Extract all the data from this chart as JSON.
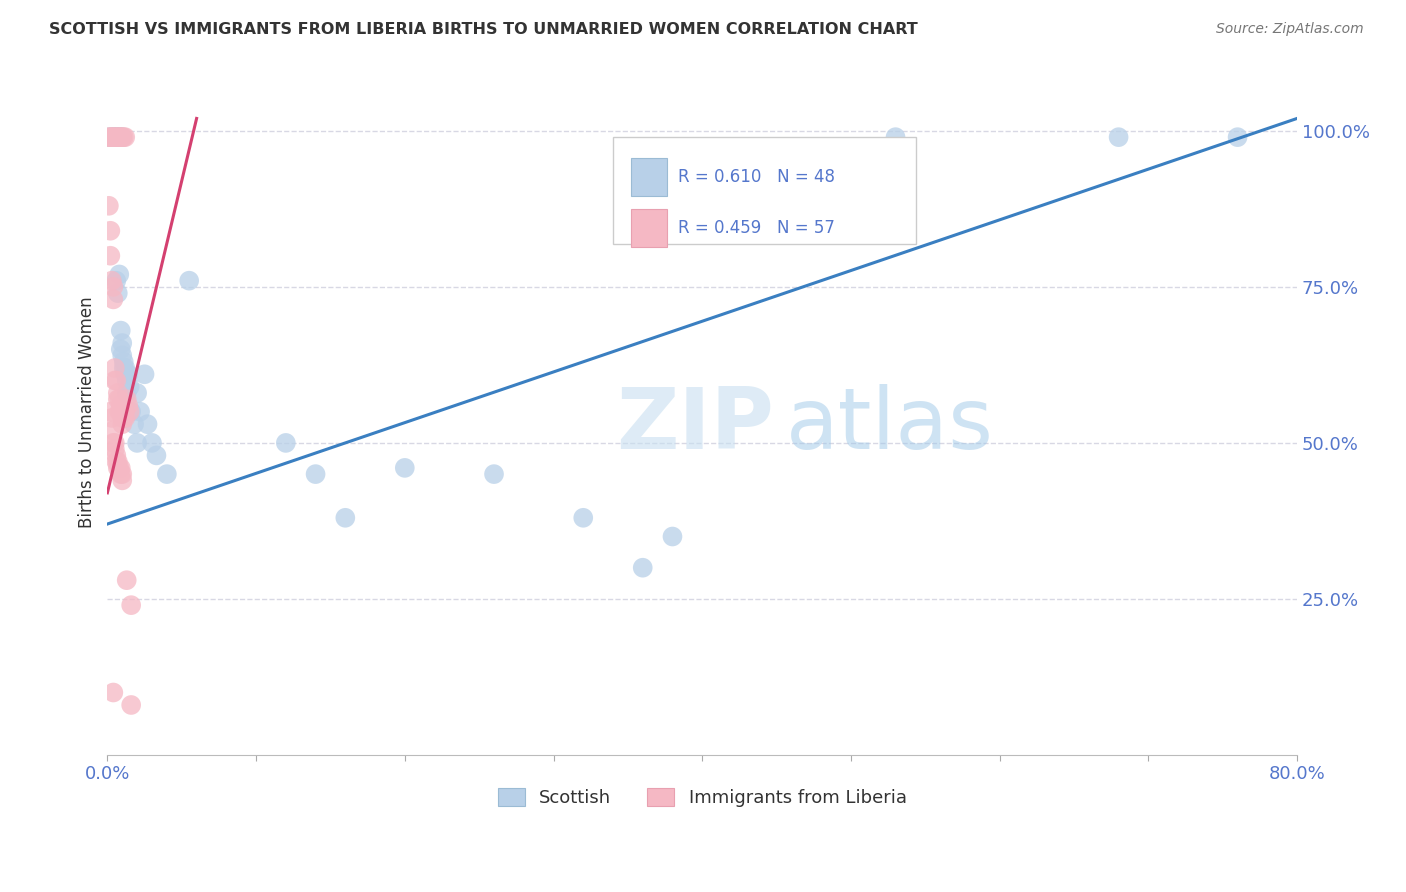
{
  "title": "SCOTTISH VS IMMIGRANTS FROM LIBERIA BIRTHS TO UNMARRIED WOMEN CORRELATION CHART",
  "source": "Source: ZipAtlas.com",
  "ylabel": "Births to Unmarried Women",
  "legend_label1": "Scottish",
  "legend_label2": "Immigrants from Liberia",
  "R_blue": 0.61,
  "N_blue": 48,
  "R_pink": 0.459,
  "N_pink": 57,
  "watermark_zip": "ZIP",
  "watermark_atlas": "atlas",
  "blue_color": "#b8d0e8",
  "pink_color": "#f5b8c4",
  "blue_line_color": "#3a7fc1",
  "pink_line_color": "#d44070",
  "blue_scatter": [
    [
      0.001,
      0.99
    ],
    [
      0.003,
      0.99
    ],
    [
      0.004,
      0.99
    ],
    [
      0.005,
      0.99
    ],
    [
      0.005,
      0.99
    ],
    [
      0.006,
      0.99
    ],
    [
      0.006,
      0.99
    ],
    [
      0.007,
      0.99
    ],
    [
      0.008,
      0.99
    ],
    [
      0.009,
      0.99
    ],
    [
      0.01,
      0.99
    ],
    [
      0.006,
      0.76
    ],
    [
      0.007,
      0.74
    ],
    [
      0.008,
      0.77
    ],
    [
      0.009,
      0.65
    ],
    [
      0.009,
      0.68
    ],
    [
      0.01,
      0.66
    ],
    [
      0.01,
      0.64
    ],
    [
      0.011,
      0.63
    ],
    [
      0.011,
      0.62
    ],
    [
      0.012,
      0.62
    ],
    [
      0.012,
      0.61
    ],
    [
      0.013,
      0.6
    ],
    [
      0.013,
      0.58
    ],
    [
      0.014,
      0.61
    ],
    [
      0.015,
      0.59
    ],
    [
      0.016,
      0.55
    ],
    [
      0.018,
      0.53
    ],
    [
      0.02,
      0.5
    ],
    [
      0.02,
      0.58
    ],
    [
      0.022,
      0.55
    ],
    [
      0.025,
      0.61
    ],
    [
      0.027,
      0.53
    ],
    [
      0.03,
      0.5
    ],
    [
      0.033,
      0.48
    ],
    [
      0.04,
      0.45
    ],
    [
      0.055,
      0.76
    ],
    [
      0.12,
      0.5
    ],
    [
      0.14,
      0.45
    ],
    [
      0.16,
      0.38
    ],
    [
      0.2,
      0.46
    ],
    [
      0.26,
      0.45
    ],
    [
      0.32,
      0.38
    ],
    [
      0.36,
      0.3
    ],
    [
      0.38,
      0.35
    ],
    [
      0.53,
      0.99
    ],
    [
      0.68,
      0.99
    ],
    [
      0.76,
      0.99
    ]
  ],
  "pink_scatter": [
    [
      0.001,
      0.99
    ],
    [
      0.002,
      0.99
    ],
    [
      0.003,
      0.99
    ],
    [
      0.004,
      0.99
    ],
    [
      0.005,
      0.99
    ],
    [
      0.006,
      0.99
    ],
    [
      0.007,
      0.99
    ],
    [
      0.008,
      0.99
    ],
    [
      0.009,
      0.99
    ],
    [
      0.01,
      0.99
    ],
    [
      0.011,
      0.99
    ],
    [
      0.012,
      0.99
    ],
    [
      0.001,
      0.88
    ],
    [
      0.002,
      0.84
    ],
    [
      0.002,
      0.8
    ],
    [
      0.003,
      0.76
    ],
    [
      0.004,
      0.75
    ],
    [
      0.004,
      0.73
    ],
    [
      0.005,
      0.62
    ],
    [
      0.005,
      0.6
    ],
    [
      0.006,
      0.6
    ],
    [
      0.007,
      0.58
    ],
    [
      0.007,
      0.57
    ],
    [
      0.008,
      0.57
    ],
    [
      0.008,
      0.55
    ],
    [
      0.009,
      0.56
    ],
    [
      0.009,
      0.55
    ],
    [
      0.01,
      0.55
    ],
    [
      0.01,
      0.54
    ],
    [
      0.01,
      0.53
    ],
    [
      0.011,
      0.55
    ],
    [
      0.011,
      0.54
    ],
    [
      0.012,
      0.54
    ],
    [
      0.012,
      0.55
    ],
    [
      0.013,
      0.57
    ],
    [
      0.014,
      0.56
    ],
    [
      0.015,
      0.55
    ],
    [
      0.002,
      0.55
    ],
    [
      0.003,
      0.54
    ],
    [
      0.004,
      0.52
    ],
    [
      0.004,
      0.5
    ],
    [
      0.005,
      0.5
    ],
    [
      0.005,
      0.49
    ],
    [
      0.006,
      0.48
    ],
    [
      0.006,
      0.47
    ],
    [
      0.007,
      0.47
    ],
    [
      0.007,
      0.46
    ],
    [
      0.008,
      0.46
    ],
    [
      0.009,
      0.46
    ],
    [
      0.009,
      0.45
    ],
    [
      0.01,
      0.45
    ],
    [
      0.01,
      0.44
    ],
    [
      0.013,
      0.28
    ],
    [
      0.016,
      0.24
    ],
    [
      0.016,
      0.08
    ],
    [
      0.004,
      0.1
    ]
  ],
  "xmin": 0.0,
  "xmax": 0.8,
  "ymin": 0.0,
  "ymax": 1.1,
  "xtick_count": 9,
  "ytick_vals": [
    1.0,
    0.75,
    0.5,
    0.25
  ],
  "ytick_labels": [
    "100.0%",
    "75.0%",
    "50.0%",
    "25.0%"
  ],
  "blue_line_x": [
    0.0,
    0.8
  ],
  "blue_line_y": [
    0.37,
    1.02
  ],
  "pink_line_x": [
    0.0,
    0.06
  ],
  "pink_line_y": [
    0.42,
    1.02
  ],
  "background_color": "#ffffff",
  "grid_color": "#d8d8e4",
  "title_color": "#333333",
  "tick_color": "#5577cc",
  "scatter_size": 200,
  "scatter_alpha": 0.75
}
